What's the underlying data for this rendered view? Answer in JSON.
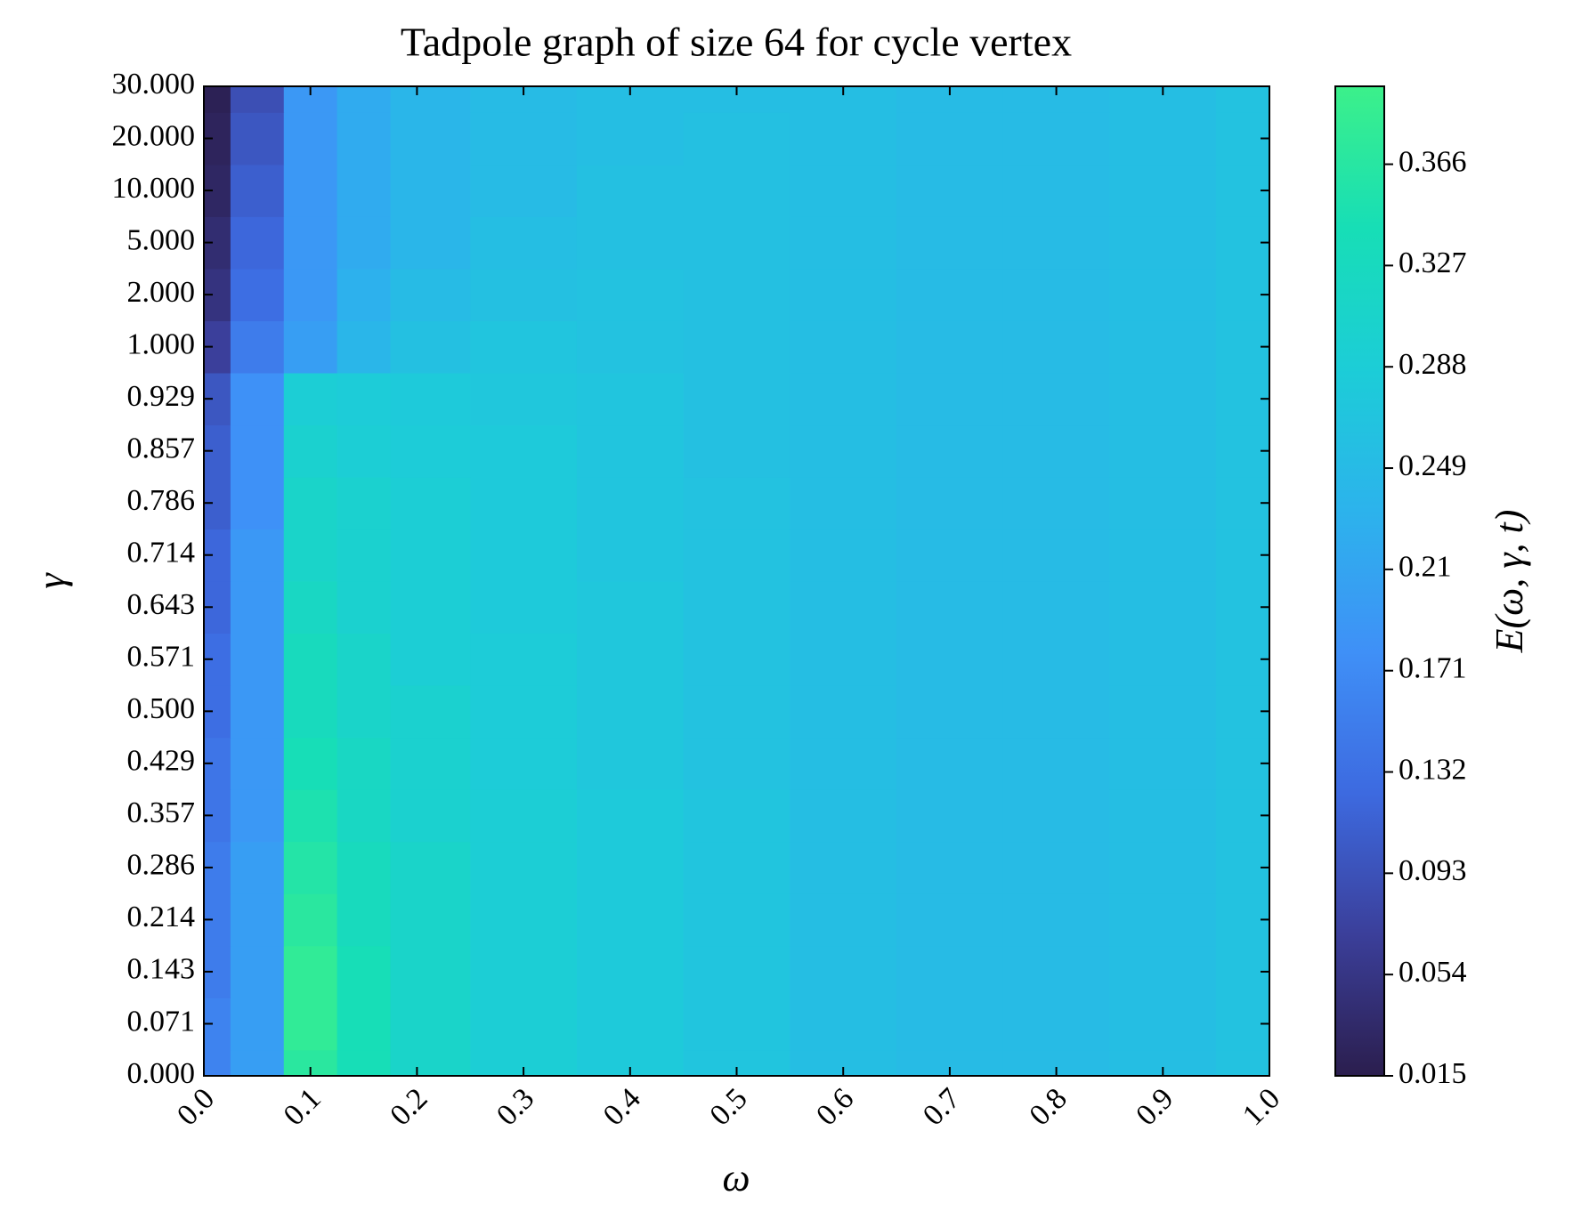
{
  "chart_data": {
    "type": "heatmap",
    "title": "Tadpole graph of size 64 for cycle vertex",
    "xlabel": "ω",
    "ylabel": "γ",
    "colorbar_label": "E(ω, γ, t)",
    "x": [
      0,
      0.05,
      0.1,
      0.15,
      0.2,
      0.3,
      0.4,
      0.5,
      0.6,
      0.7,
      0.8,
      0.9,
      1.0
    ],
    "categories": [
      "0.000",
      "0.071",
      "0.143",
      "0.214",
      "0.286",
      "0.357",
      "0.429",
      "0.500",
      "0.571",
      "0.643",
      "0.714",
      "0.786",
      "0.857",
      "0.929",
      "1.000",
      "2.000",
      "5.000",
      "10.000",
      "20.000",
      "30.000"
    ],
    "xlim": [
      0,
      1
    ],
    "xticks": [
      {
        "value": 0,
        "label": "0.0"
      },
      0.1,
      0.2,
      0.3,
      0.4,
      0.5,
      0.6,
      0.7,
      0.8,
      0.9,
      {
        "value": 1,
        "label": "1.0"
      }
    ],
    "z": [
      [
        0.16,
        0.2,
        0.37,
        0.34,
        0.31,
        0.29,
        0.28,
        0.27,
        0.255,
        0.25,
        0.25,
        0.255,
        0.265
      ],
      [
        0.16,
        0.2,
        0.38,
        0.34,
        0.31,
        0.29,
        0.28,
        0.27,
        0.255,
        0.25,
        0.25,
        0.255,
        0.265
      ],
      [
        0.15,
        0.2,
        0.38,
        0.34,
        0.31,
        0.29,
        0.28,
        0.27,
        0.255,
        0.25,
        0.25,
        0.255,
        0.265
      ],
      [
        0.15,
        0.2,
        0.37,
        0.33,
        0.31,
        0.29,
        0.28,
        0.27,
        0.255,
        0.25,
        0.25,
        0.255,
        0.265
      ],
      [
        0.15,
        0.2,
        0.36,
        0.33,
        0.31,
        0.29,
        0.28,
        0.27,
        0.255,
        0.25,
        0.25,
        0.255,
        0.265
      ],
      [
        0.14,
        0.19,
        0.35,
        0.32,
        0.3,
        0.29,
        0.28,
        0.27,
        0.255,
        0.25,
        0.25,
        0.255,
        0.265
      ],
      [
        0.14,
        0.19,
        0.34,
        0.32,
        0.3,
        0.285,
        0.275,
        0.265,
        0.255,
        0.25,
        0.25,
        0.255,
        0.265
      ],
      [
        0.13,
        0.19,
        0.33,
        0.31,
        0.3,
        0.285,
        0.275,
        0.265,
        0.255,
        0.25,
        0.25,
        0.255,
        0.265
      ],
      [
        0.13,
        0.19,
        0.33,
        0.31,
        0.29,
        0.285,
        0.275,
        0.265,
        0.255,
        0.25,
        0.25,
        0.255,
        0.265
      ],
      [
        0.12,
        0.19,
        0.32,
        0.3,
        0.29,
        0.28,
        0.275,
        0.265,
        0.255,
        0.25,
        0.25,
        0.255,
        0.265
      ],
      [
        0.12,
        0.19,
        0.31,
        0.3,
        0.29,
        0.28,
        0.27,
        0.265,
        0.255,
        0.25,
        0.25,
        0.255,
        0.265
      ],
      [
        0.11,
        0.18,
        0.31,
        0.3,
        0.29,
        0.28,
        0.27,
        0.265,
        0.255,
        0.25,
        0.25,
        0.255,
        0.265
      ],
      [
        0.11,
        0.18,
        0.3,
        0.29,
        0.285,
        0.28,
        0.27,
        0.26,
        0.255,
        0.25,
        0.25,
        0.255,
        0.265
      ],
      [
        0.1,
        0.18,
        0.29,
        0.285,
        0.28,
        0.275,
        0.27,
        0.26,
        0.255,
        0.25,
        0.25,
        0.255,
        0.265
      ],
      [
        0.07,
        0.15,
        0.2,
        0.24,
        0.26,
        0.27,
        0.265,
        0.26,
        0.255,
        0.25,
        0.25,
        0.255,
        0.265
      ],
      [
        0.05,
        0.13,
        0.19,
        0.23,
        0.25,
        0.26,
        0.265,
        0.26,
        0.255,
        0.25,
        0.25,
        0.255,
        0.265
      ],
      [
        0.04,
        0.12,
        0.19,
        0.22,
        0.24,
        0.255,
        0.26,
        0.26,
        0.255,
        0.25,
        0.25,
        0.255,
        0.265
      ],
      [
        0.03,
        0.11,
        0.19,
        0.22,
        0.24,
        0.25,
        0.26,
        0.26,
        0.255,
        0.25,
        0.25,
        0.255,
        0.265
      ],
      [
        0.025,
        0.1,
        0.19,
        0.22,
        0.24,
        0.25,
        0.255,
        0.26,
        0.255,
        0.25,
        0.25,
        0.255,
        0.265
      ],
      [
        0.02,
        0.09,
        0.19,
        0.22,
        0.24,
        0.25,
        0.255,
        0.255,
        0.255,
        0.25,
        0.25,
        0.255,
        0.265
      ]
    ],
    "clim": [
      0.015,
      0.396
    ],
    "cticks": [
      0.015,
      0.054,
      0.093,
      0.132,
      0.171,
      0.21,
      0.249,
      0.288,
      0.327,
      0.366
    ],
    "colormap": [
      "#2b1e4e",
      "#3b3f9a",
      "#3d6ae0",
      "#3f90f7",
      "#2cb3ec",
      "#1ccdd7",
      "#17deb6",
      "#3cf08a"
    ]
  }
}
